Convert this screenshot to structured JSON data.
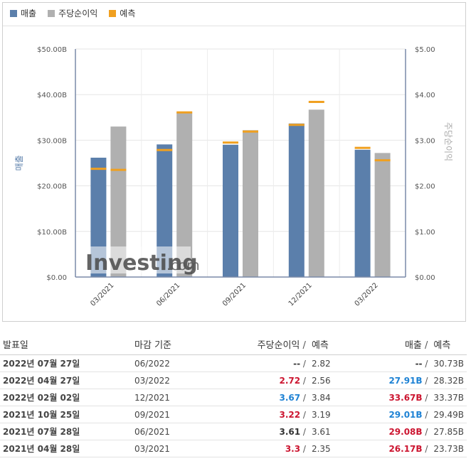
{
  "legend": [
    {
      "label": "매출",
      "color": "#5b7fab"
    },
    {
      "label": "주당순이익",
      "color": "#b0b0b0"
    },
    {
      "label": "예측",
      "color": "#f0a020"
    }
  ],
  "chart_data": {
    "type": "bar",
    "categories": [
      "03/2021",
      "06/2021",
      "09/2021",
      "12/2021",
      "03/2022"
    ],
    "series": [
      {
        "name": "매출",
        "axis": "left",
        "color": "#5b7fab",
        "values": [
          26.17,
          29.08,
          29.01,
          33.67,
          27.91
        ],
        "forecast": [
          23.73,
          27.85,
          29.49,
          33.37,
          28.32
        ]
      },
      {
        "name": "주당순이익",
        "axis": "right",
        "color": "#b0b0b0",
        "values": [
          3.3,
          3.61,
          3.22,
          3.67,
          2.72
        ],
        "forecast": [
          2.35,
          3.61,
          3.19,
          3.84,
          2.56
        ]
      }
    ],
    "ylabel_left": "매출",
    "ylabel_right": "주당순이익",
    "ylim_left": [
      0,
      50
    ],
    "ylim_right": [
      0,
      5
    ],
    "yticks_left": [
      "$0.00",
      "$10.00B",
      "$20.00B",
      "$30.00B",
      "$40.00B",
      "$50.00B"
    ],
    "yticks_right": [
      "$0.00",
      "$1.00",
      "$2.00",
      "$3.00",
      "$4.00",
      "$5.00"
    ],
    "grid": true,
    "legend_position": "top-left"
  },
  "watermark": {
    "brand": "Investing",
    "suffix": ".com"
  },
  "table": {
    "headers": {
      "date": "발표일",
      "period": "마감 기준",
      "eps": "주당순이익",
      "eps_sep": "/",
      "eps_fc": "예측",
      "rev": "매출",
      "rev_sep": "/",
      "rev_fc": "예측"
    },
    "rows": [
      {
        "date": "2022년 07월 27일",
        "period": "06/2022",
        "eps": "--",
        "eps_cls": "flat",
        "eps_fc": "2.82",
        "rev": "--",
        "rev_cls": "flat",
        "rev_fc": "30.73B"
      },
      {
        "date": "2022년 04월 27일",
        "period": "03/2022",
        "eps": "2.72",
        "eps_cls": "neg",
        "eps_fc": "2.56",
        "rev": "27.91B",
        "rev_cls": "pos",
        "rev_fc": "28.32B"
      },
      {
        "date": "2022년 02월 02일",
        "period": "12/2021",
        "eps": "3.67",
        "eps_cls": "pos",
        "eps_fc": "3.84",
        "rev": "33.67B",
        "rev_cls": "neg",
        "rev_fc": "33.37B"
      },
      {
        "date": "2021년 10월 25일",
        "period": "09/2021",
        "eps": "3.22",
        "eps_cls": "neg",
        "eps_fc": "3.19",
        "rev": "29.01B",
        "rev_cls": "pos",
        "rev_fc": "29.49B"
      },
      {
        "date": "2021년 07월 28일",
        "period": "06/2021",
        "eps": "3.61",
        "eps_cls": "flat",
        "eps_fc": "3.61",
        "rev": "29.08B",
        "rev_cls": "neg",
        "rev_fc": "27.85B"
      },
      {
        "date": "2021년 04월 28일",
        "period": "03/2021",
        "eps": "3.3",
        "eps_cls": "neg",
        "eps_fc": "2.35",
        "rev": "26.17B",
        "rev_cls": "neg",
        "rev_fc": "23.73B"
      }
    ]
  }
}
